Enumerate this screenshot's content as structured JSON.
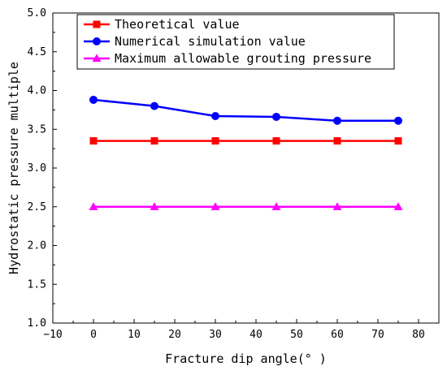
{
  "chart_data": {
    "type": "line",
    "xlabel": "Fracture dip angle(° )",
    "ylabel": "Hydrostatic pressure multiple",
    "xlim": [
      -10,
      85
    ],
    "ylim": [
      1.0,
      5.0
    ],
    "x_ticks": [
      -10,
      0,
      10,
      20,
      30,
      40,
      50,
      60,
      70,
      80
    ],
    "y_ticks": [
      1.0,
      1.5,
      2.0,
      2.5,
      3.0,
      3.5,
      4.0,
      4.5,
      5.0
    ],
    "x": [
      0,
      15,
      30,
      45,
      60,
      75
    ],
    "legend_position": "top-right",
    "grid": false,
    "series": [
      {
        "name": "Theoretical value",
        "color": "#ff0000",
        "marker": "square",
        "values": [
          3.35,
          3.35,
          3.35,
          3.35,
          3.35,
          3.35
        ]
      },
      {
        "name": "Numerical simulation value",
        "color": "#0000ff",
        "marker": "circle",
        "values": [
          3.88,
          3.8,
          3.67,
          3.66,
          3.61,
          3.61
        ]
      },
      {
        "name": "Maximum allowable grouting pressure",
        "color": "#ff00ff",
        "marker": "triangle",
        "values": [
          2.5,
          2.5,
          2.5,
          2.5,
          2.5,
          2.5
        ]
      }
    ]
  }
}
